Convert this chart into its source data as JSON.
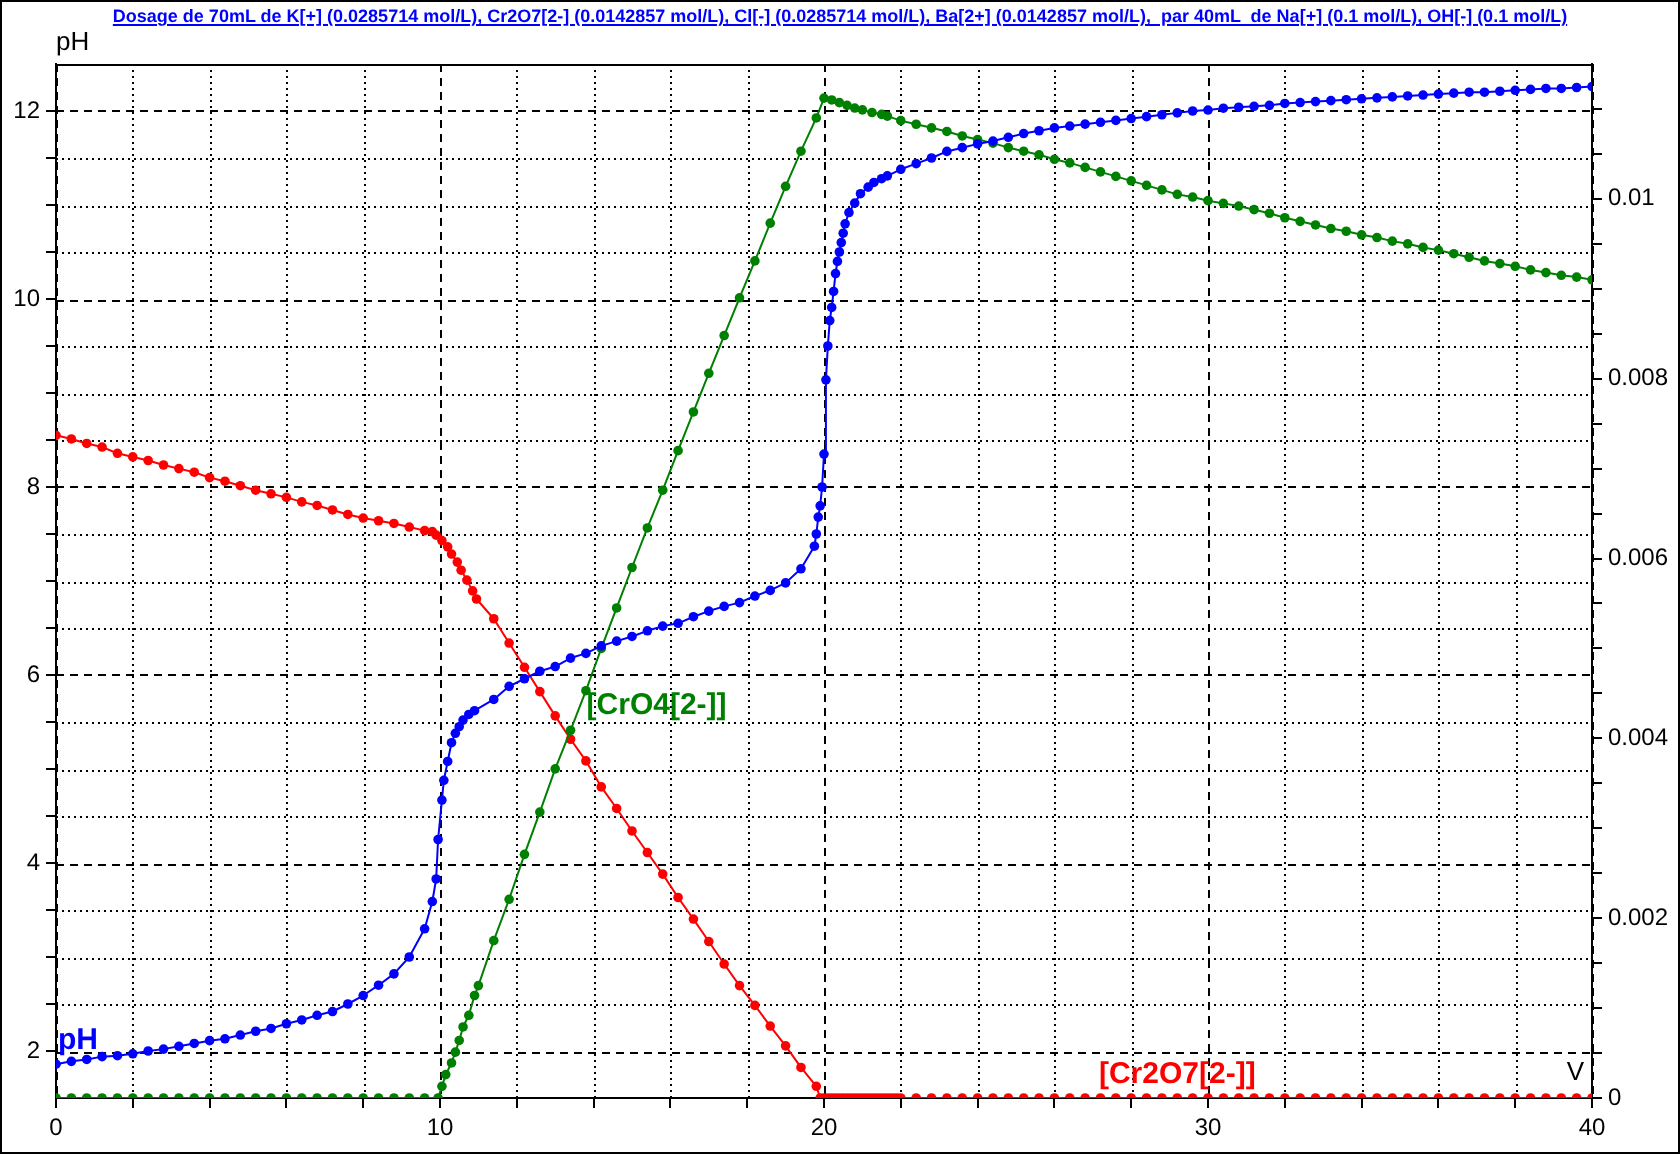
{
  "chart_data": {
    "type": "line",
    "title": "Dosage de 70mL de K[+] (0.0285714 mol/L), Cr2O7[2-] (0.0142857 mol/L), Cl[-] (0.0285714 mol/L), Ba[2+] (0.0142857 mol/L),  par 40mL  de Na[+] (0.1 mol/L), OH[-] (0.1 mol/L)",
    "xlabel": "V",
    "ylabel": "pH",
    "xlim": [
      0,
      40
    ],
    "xticks": [
      0,
      {
        "value": 2,
        "label": null
      },
      {
        "value": 4,
        "label": null
      },
      {
        "value": 6,
        "label": null
      },
      {
        "value": 8,
        "label": null
      },
      10,
      {
        "value": 12,
        "label": null
      },
      {
        "value": 14,
        "label": null
      },
      {
        "value": 16,
        "label": null
      },
      {
        "value": 18,
        "label": null
      },
      20,
      {
        "value": 22,
        "label": null
      },
      {
        "value": 24,
        "label": null
      },
      {
        "value": 26,
        "label": null
      },
      {
        "value": 28,
        "label": null
      },
      30,
      {
        "value": 32,
        "label": null
      },
      {
        "value": 34,
        "label": null
      },
      {
        "value": 36,
        "label": null
      },
      {
        "value": 38,
        "label": null
      },
      40
    ],
    "ylim": [
      1.5,
      12.5
    ],
    "yticks": [
      2,
      {
        "value": 2.5,
        "label": null
      },
      {
        "value": 3,
        "label": null
      },
      {
        "value": 3.5,
        "label": null
      },
      4,
      {
        "value": 4.5,
        "label": null
      },
      {
        "value": 5,
        "label": null
      },
      {
        "value": 5.5,
        "label": null
      },
      6,
      {
        "value": 6.5,
        "label": null
      },
      {
        "value": 7,
        "label": null
      },
      {
        "value": 7.5,
        "label": null
      },
      8,
      {
        "value": 8.5,
        "label": null
      },
      {
        "value": 9,
        "label": null
      },
      {
        "value": 9.5,
        "label": null
      },
      10,
      {
        "value": 10.5,
        "label": null
      },
      {
        "value": 11,
        "label": null
      },
      {
        "value": 11.5,
        "label": null
      },
      12
    ],
    "y2lim": [
      0,
      0.0115
    ],
    "y2ticks": [
      0,
      {
        "value": 0.0005,
        "label": null
      },
      {
        "value": 0.001,
        "label": null
      },
      {
        "value": 0.0015,
        "label": null
      },
      0.002,
      {
        "value": 0.0025,
        "label": null
      },
      {
        "value": 0.003,
        "label": null
      },
      {
        "value": 0.0035,
        "label": null
      },
      0.004,
      {
        "value": 0.0045,
        "label": null
      },
      {
        "value": 0.005,
        "label": null
      },
      {
        "value": 0.0055,
        "label": null
      },
      0.006,
      {
        "value": 0.0065,
        "label": null
      },
      {
        "value": 0.007,
        "label": null
      },
      {
        "value": 0.0075,
        "label": null
      },
      0.008,
      {
        "value": 0.0085,
        "label": null
      },
      {
        "value": 0.009,
        "label": null
      },
      {
        "value": 0.0095,
        "label": null
      },
      0.01,
      {
        "value": 0.0105,
        "label": null
      },
      {
        "value": 0.011,
        "label": null
      }
    ],
    "grid": true,
    "marker": "circle",
    "line_style": "solid",
    "series": [
      {
        "name": "pH",
        "color": "#0000ff",
        "x": [
          0,
          0.4,
          0.8,
          1.2,
          1.6,
          2,
          2.4,
          2.8,
          3.2,
          3.6,
          4,
          4.4,
          4.8,
          5.2,
          5.6,
          6,
          6.4,
          6.8,
          7.2,
          7.6,
          8,
          8.4,
          8.8,
          9.2,
          9.6,
          9.8,
          9.9,
          9.95,
          10.05,
          10.1,
          10.2,
          10.3,
          10.4,
          10.5,
          10.6,
          10.75,
          10.9,
          11.4,
          11.8,
          12.2,
          12.6,
          13,
          13.4,
          13.8,
          14.2,
          14.6,
          15,
          15.4,
          15.8,
          16.2,
          16.6,
          17,
          17.4,
          17.8,
          18.2,
          18.6,
          19,
          19.4,
          19.75,
          19.8,
          19.85,
          19.9,
          19.95,
          20,
          20.05,
          20.1,
          20.15,
          20.2,
          20.25,
          20.3,
          20.35,
          20.4,
          20.45,
          20.5,
          20.55,
          20.65,
          20.8,
          20.95,
          21.15,
          21.3,
          21.5,
          21.65,
          22,
          22.4,
          22.8,
          23.2,
          23.6,
          24,
          24.4,
          24.8,
          25.2,
          25.6,
          26,
          26.4,
          26.8,
          27.2,
          27.6,
          28,
          28.4,
          28.8,
          29.2,
          29.6,
          30,
          30.4,
          30.8,
          31.2,
          31.6,
          32,
          32.4,
          32.8,
          33.2,
          33.6,
          34,
          34.4,
          34.8,
          35.2,
          35.6,
          36,
          36.4,
          36.8,
          37.2,
          37.6,
          38,
          38.4,
          38.8,
          39.2,
          39.6,
          40
        ],
        "values": [
          1.86,
          1.89,
          1.91,
          1.94,
          1.95,
          1.97,
          2,
          2.02,
          2.05,
          2.08,
          2.11,
          2.13,
          2.17,
          2.21,
          2.24,
          2.29,
          2.33,
          2.38,
          2.42,
          2.5,
          2.59,
          2.7,
          2.82,
          3,
          3.3,
          3.59,
          3.83,
          4.25,
          4.67,
          4.88,
          5.08,
          5.28,
          5.38,
          5.45,
          5.52,
          5.58,
          5.62,
          5.74,
          5.88,
          5.96,
          6.04,
          6.09,
          6.18,
          6.23,
          6.31,
          6.36,
          6.41,
          6.47,
          6.52,
          6.55,
          6.62,
          6.68,
          6.73,
          6.77,
          6.84,
          6.9,
          6.98,
          7.13,
          7.37,
          7.5,
          7.68,
          7.8,
          8,
          8.35,
          9.14,
          9.5,
          9.77,
          9.91,
          10.08,
          10.27,
          10.4,
          10.5,
          10.6,
          10.7,
          10.8,
          10.92,
          11.02,
          11.12,
          11.19,
          11.24,
          11.28,
          11.31,
          11.38,
          11.44,
          11.5,
          11.57,
          11.61,
          11.65,
          11.68,
          11.72,
          11.76,
          11.79,
          11.82,
          11.84,
          11.86,
          11.88,
          11.9,
          11.92,
          11.94,
          11.96,
          11.98,
          12,
          12.01,
          12.03,
          12.04,
          12.05,
          12.06,
          12.08,
          12.09,
          12.1,
          12.11,
          12.12,
          12.13,
          12.14,
          12.15,
          12.16,
          12.17,
          12.18,
          12.19,
          12.2,
          12.2,
          12.21,
          12.22,
          12.23,
          12.24,
          12.24,
          12.25,
          12.26
        ]
      },
      {
        "name": "[CrO4[2-]]",
        "color": "#008000",
        "axis": "y2",
        "x": [
          0,
          0.4,
          0.8,
          1.2,
          1.6,
          2,
          2.4,
          2.8,
          3.2,
          3.6,
          4,
          4.4,
          4.8,
          5.2,
          5.6,
          6,
          6.4,
          6.8,
          7.2,
          7.6,
          8,
          8.4,
          8.8,
          9.2,
          9.6,
          9.95,
          10.05,
          10.15,
          10.3,
          10.4,
          10.5,
          10.6,
          10.75,
          10.9,
          11,
          11.4,
          11.8,
          12.2,
          12.6,
          13,
          13.4,
          13.8,
          14.2,
          14.6,
          15,
          15.4,
          15.8,
          16.2,
          16.6,
          17,
          17.4,
          17.8,
          18.2,
          18.6,
          19,
          19.4,
          19.8,
          20,
          20.2,
          20.4,
          20.6,
          20.8,
          21,
          21.25,
          21.5,
          21.65,
          22,
          22.4,
          22.8,
          23.2,
          23.6,
          24,
          24.4,
          24.8,
          25.2,
          25.6,
          26,
          26.4,
          26.8,
          27.2,
          27.6,
          28,
          28.4,
          28.8,
          29.2,
          29.6,
          30,
          30.4,
          30.8,
          31.2,
          31.6,
          32,
          32.4,
          32.8,
          33.2,
          33.6,
          34,
          34.4,
          34.8,
          35.2,
          35.6,
          36,
          36.4,
          36.8,
          37.2,
          37.6,
          38,
          38.4,
          38.8,
          39.2,
          39.6,
          40
        ],
        "values": [
          0,
          0,
          0,
          0,
          0,
          0,
          0,
          0,
          0,
          0,
          0,
          0,
          0,
          0,
          0,
          0,
          0,
          0,
          0,
          0,
          0,
          0,
          0,
          0,
          0,
          0,
          0.00013,
          0.00026,
          0.00039,
          0.00051,
          0.00064,
          0.00079,
          0.00092,
          0.00114,
          0.00125,
          0.00175,
          0.00221,
          0.00271,
          0.00318,
          0.00366,
          0.00409,
          0.00453,
          0.005,
          0.00545,
          0.0059,
          0.00634,
          0.00676,
          0.0072,
          0.00763,
          0.00806,
          0.00848,
          0.0089,
          0.00931,
          0.00973,
          0.01014,
          0.01053,
          0.0109,
          0.01112,
          0.0111,
          0.01107,
          0.01104,
          0.01101,
          0.01099,
          0.01096,
          0.01094,
          0.01092,
          0.01087,
          0.01083,
          0.01079,
          0.01075,
          0.0107,
          0.01066,
          0.01062,
          0.01057,
          0.01053,
          0.01049,
          0.01044,
          0.0104,
          0.01035,
          0.0103,
          0.01025,
          0.0102,
          0.01015,
          0.0101,
          0.01005,
          0.01002,
          0.00998,
          0.00995,
          0.00992,
          0.00988,
          0.00984,
          0.00979,
          0.00975,
          0.00971,
          0.00967,
          0.00964,
          0.0096,
          0.00957,
          0.00953,
          0.0095,
          0.00946,
          0.00943,
          0.00939,
          0.00935,
          0.00931,
          0.00928,
          0.00925,
          0.00921,
          0.00918,
          0.00915,
          0.00913,
          0.0091
        ]
      },
      {
        "name": "[Cr2O7[2-]]",
        "color": "#ff0000",
        "axis": "y2",
        "x": [
          0,
          0.4,
          0.8,
          1.2,
          1.6,
          2,
          2.4,
          2.8,
          3.2,
          3.6,
          4,
          4.4,
          4.8,
          5.2,
          5.6,
          6,
          6.4,
          6.8,
          7.2,
          7.6,
          8,
          8.4,
          8.8,
          9.2,
          9.6,
          9.8,
          9.9,
          10.05,
          10.2,
          10.3,
          10.45,
          10.55,
          10.7,
          10.85,
          10.95,
          11.4,
          11.8,
          12.2,
          12.6,
          13,
          13.4,
          13.8,
          14.2,
          14.6,
          15,
          15.4,
          15.8,
          16.2,
          16.6,
          17,
          17.4,
          17.8,
          18.2,
          18.6,
          19,
          19.4,
          19.8,
          19.9,
          20,
          20.1,
          20.2,
          20.3,
          20.4,
          20.5,
          20.6,
          20.7,
          20.8,
          20.9,
          21,
          21.1,
          21.2,
          21.3,
          21.4,
          21.5,
          21.6,
          21.7,
          21.8,
          21.9,
          22,
          22.4,
          22.8,
          23.2,
          23.6,
          24,
          24.4,
          24.8,
          25.2,
          25.6,
          26,
          26.4,
          26.8,
          27.2,
          27.6,
          28,
          28.4,
          28.8,
          29.2,
          29.6,
          30,
          30.4,
          30.8,
          31.2,
          31.6,
          32,
          32.4,
          32.8,
          33.2,
          33.6,
          34,
          34.4,
          34.8,
          35.2,
          35.6,
          36,
          36.4,
          36.8,
          37.2,
          37.6,
          38,
          38.4,
          38.8,
          39.2,
          39.6,
          40
        ],
        "values": [
          0.00737,
          0.00733,
          0.00728,
          0.00724,
          0.00717,
          0.00713,
          0.00709,
          0.00704,
          0.007,
          0.00696,
          0.0069,
          0.00686,
          0.00681,
          0.00676,
          0.00672,
          0.00668,
          0.00663,
          0.00659,
          0.00654,
          0.00649,
          0.00645,
          0.00642,
          0.00639,
          0.00635,
          0.00631,
          0.0063,
          0.00626,
          0.0062,
          0.00613,
          0.00605,
          0.00596,
          0.00587,
          0.00576,
          0.00564,
          0.00555,
          0.00533,
          0.00506,
          0.00479,
          0.00452,
          0.00425,
          0.00399,
          0.00375,
          0.00346,
          0.00322,
          0.00297,
          0.00273,
          0.00249,
          0.00223,
          0.00199,
          0.00174,
          0.00149,
          0.00125,
          0.00103,
          0.0008,
          0.00058,
          0.00034,
          0.00013,
          0,
          0,
          0,
          0,
          0,
          0,
          0,
          0,
          0,
          0,
          0,
          0,
          0,
          0,
          0,
          0,
          0,
          0,
          0,
          0,
          0,
          0,
          0,
          0,
          0,
          0,
          0,
          0,
          0,
          0,
          0,
          0,
          0,
          0,
          0,
          0,
          0,
          0,
          0,
          0,
          0,
          0,
          0,
          0,
          0,
          0,
          0,
          0,
          0,
          0,
          0,
          0,
          0,
          0,
          0,
          0,
          0,
          0,
          0,
          0,
          0,
          0,
          0,
          0,
          0,
          0,
          0
        ]
      }
    ]
  }
}
